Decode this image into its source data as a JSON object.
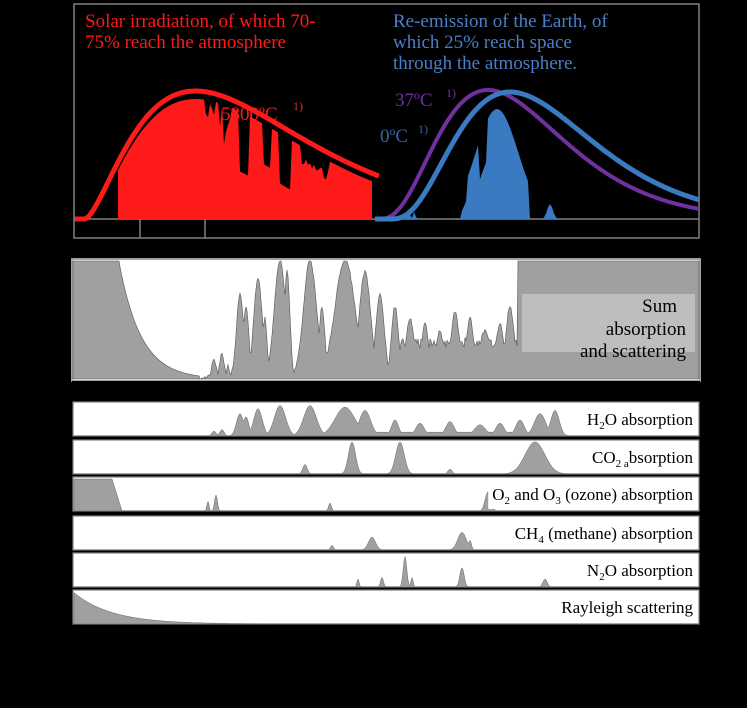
{
  "colors": {
    "background": "#000000",
    "solar": "#ff1a1a",
    "earth_0c": "#3a7ac0",
    "body_37c": "#7030a0",
    "earth_label": "#4a7fc8",
    "body_label": "#7030a0",
    "absorption_fill": "#a0a0a0",
    "panel": "#ffffff"
  },
  "chart_data": [
    {
      "type": "area",
      "panel": "emission",
      "annotations": {
        "solar_text": [
          "Solar irradiation, of which 70-",
          "75% reach the atmosphere"
        ],
        "earth_text": [
          "Re-emission of the Earth, of",
          "which 25% reach space",
          "through the atmosphere."
        ],
        "sun_temp": "5800ºC",
        "body_temp": "37ºC",
        "earth_temp": "0ºC",
        "footnote": "1)"
      },
      "series": [
        {
          "name": "5800ºC",
          "shape": "planck",
          "peak": 1.0
        },
        {
          "name": "37ºC",
          "shape": "planck",
          "peak": 0.95
        },
        {
          "name": "0ºC",
          "shape": "planck",
          "peak": 0.95
        }
      ],
      "grid": false
    },
    {
      "type": "area",
      "panel": "sum",
      "label": [
        "Sum",
        "absorption",
        "and scattering"
      ]
    },
    {
      "type": "area",
      "panels": [
        {
          "key": "h2o",
          "label_parts": [
            "H",
            "2",
            "O absorption"
          ]
        },
        {
          "key": "co2",
          "label_parts": [
            "CO",
            "2 a",
            "bsorption"
          ]
        },
        {
          "key": "o3",
          "label_parts": [
            "O",
            "2",
            " and O",
            "3",
            " (ozone) absorption"
          ]
        },
        {
          "key": "ch4",
          "label_parts": [
            "CH",
            "4",
            " (methane)  absorption"
          ]
        },
        {
          "key": "n2o",
          "label_parts": [
            "N",
            "2",
            "O absorption"
          ]
        },
        {
          "key": "rayleigh",
          "label_parts": [
            "Rayleigh  scattering"
          ]
        }
      ]
    }
  ]
}
